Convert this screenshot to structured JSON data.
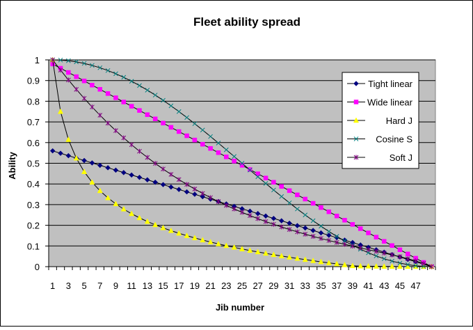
{
  "chart_data": {
    "type": "line",
    "title": "Fleet ability spread",
    "xlabel": "Jib number",
    "ylabel": "Ability",
    "ylim": [
      0,
      1
    ],
    "yticks": [
      0,
      0.1,
      0.2,
      0.3,
      0.4,
      0.5,
      0.6,
      0.7,
      0.8,
      0.9,
      1
    ],
    "ytick_labels": [
      "0",
      "0.1",
      "0.2",
      "0.3",
      "0.4",
      "0.5",
      "0.6",
      "0.7",
      "0.8",
      "0.9",
      "1"
    ],
    "x": [
      1,
      2,
      3,
      4,
      5,
      6,
      7,
      8,
      9,
      10,
      11,
      12,
      13,
      14,
      15,
      16,
      17,
      18,
      19,
      20,
      21,
      22,
      23,
      24,
      25,
      26,
      27,
      28,
      29,
      30,
      31,
      32,
      33,
      34,
      35,
      36,
      37,
      38,
      39,
      40,
      41,
      42,
      43,
      44,
      45,
      46,
      47,
      48,
      49
    ],
    "xtick_labels": [
      "1",
      "3",
      "5",
      "7",
      "9",
      "11",
      "13",
      "15",
      "17",
      "19",
      "21",
      "23",
      "25",
      "27",
      "29",
      "31",
      "33",
      "35",
      "37",
      "39",
      "41",
      "43",
      "45",
      "47"
    ],
    "grid": true,
    "plot_background": "#c0c0c0",
    "legend_position": "right",
    "series": [
      {
        "name": "Tight linear",
        "color": "#000080",
        "marker": "diamond",
        "values": [
          0.56,
          0.5483,
          0.5367,
          0.525,
          0.5133,
          0.5017,
          0.49,
          0.4783,
          0.4667,
          0.455,
          0.4433,
          0.4317,
          0.42,
          0.4083,
          0.3967,
          0.385,
          0.3733,
          0.3617,
          0.35,
          0.3383,
          0.3267,
          0.315,
          0.3033,
          0.2917,
          0.28,
          0.2683,
          0.2567,
          0.245,
          0.2333,
          0.2217,
          0.21,
          0.1983,
          0.1867,
          0.175,
          0.1633,
          0.1517,
          0.14,
          0.1283,
          0.1167,
          0.105,
          0.0933,
          0.0817,
          0.07,
          0.0583,
          0.0467,
          0.035,
          0.0233,
          0.0117,
          0
        ]
      },
      {
        "name": "Wide linear",
        "color": "#ff00ff",
        "marker": "square",
        "values": [
          0.98,
          0.9596,
          0.9392,
          0.9188,
          0.8983,
          0.8779,
          0.8575,
          0.8371,
          0.8167,
          0.7963,
          0.7758,
          0.7554,
          0.735,
          0.7146,
          0.6942,
          0.6738,
          0.6533,
          0.6329,
          0.6125,
          0.5921,
          0.5717,
          0.5513,
          0.5308,
          0.5104,
          0.49,
          0.4696,
          0.4492,
          0.4288,
          0.4083,
          0.3879,
          0.3675,
          0.3471,
          0.3267,
          0.3063,
          0.2858,
          0.2654,
          0.245,
          0.2246,
          0.2042,
          0.1838,
          0.1633,
          0.1429,
          0.1225,
          0.1021,
          0.0817,
          0.0613,
          0.0408,
          0.0204,
          0
        ]
      },
      {
        "name": "Hard J",
        "color": "#ffff00",
        "marker": "triangle",
        "values": [
          1,
          0.75,
          0.6143,
          0.5244,
          0.4589,
          0.4081,
          0.367,
          0.3327,
          0.3035,
          0.2782,
          0.2559,
          0.2361,
          0.2183,
          0.2022,
          0.1875,
          0.1739,
          0.1614,
          0.1497,
          0.1388,
          0.1286,
          0.119,
          0.11,
          0.1014,
          0.0932,
          0.0854,
          0.078,
          0.071,
          0.0642,
          0.0577,
          0.0515,
          0.0454,
          0.0396,
          0.034,
          0.0286,
          0.0233,
          0.0182,
          0.0133,
          0.0085,
          0.0039,
          0.0025,
          0.002,
          0.0015,
          0.0012,
          0.0009,
          0.0006,
          0.0004,
          0.0002,
          0.0001,
          0
        ]
      },
      {
        "name": "Cosine S",
        "color": "#008080",
        "marker": "x",
        "values": [
          1,
          0.9989,
          0.9957,
          0.9904,
          0.9829,
          0.9733,
          0.9619,
          0.9485,
          0.933,
          0.9157,
          0.8966,
          0.8759,
          0.8536,
          0.8298,
          0.8044,
          0.7777,
          0.75,
          0.7212,
          0.6913,
          0.6607,
          0.6294,
          0.5976,
          0.5653,
          0.5327,
          0.5,
          0.4673,
          0.4347,
          0.4024,
          0.3706,
          0.3393,
          0.3087,
          0.2788,
          0.25,
          0.2223,
          0.1956,
          0.1702,
          0.1464,
          0.1241,
          0.1034,
          0.0843,
          0.067,
          0.0515,
          0.0381,
          0.0267,
          0.0171,
          0.0096,
          0.0043,
          0.0011,
          0
        ]
      },
      {
        "name": "Soft J",
        "color": "#800080",
        "marker": "star",
        "values": [
          1,
          0.9504,
          0.9029,
          0.8574,
          0.8138,
          0.7721,
          0.7322,
          0.6941,
          0.6577,
          0.623,
          0.5898,
          0.5582,
          0.5281,
          0.4994,
          0.4721,
          0.4461,
          0.4213,
          0.3978,
          0.3754,
          0.3541,
          0.3339,
          0.3147,
          0.2964,
          0.2791,
          0.2627,
          0.2471,
          0.2322,
          0.2181,
          0.2047,
          0.1919,
          0.1797,
          0.1681,
          0.157,
          0.1464,
          0.1362,
          0.1265,
          0.1171,
          0.108,
          0.0992,
          0.0906,
          0.0822,
          0.0738,
          0.0654,
          0.0568,
          0.0479,
          0.0384,
          0.0278,
          0.0154,
          0
        ]
      }
    ]
  }
}
